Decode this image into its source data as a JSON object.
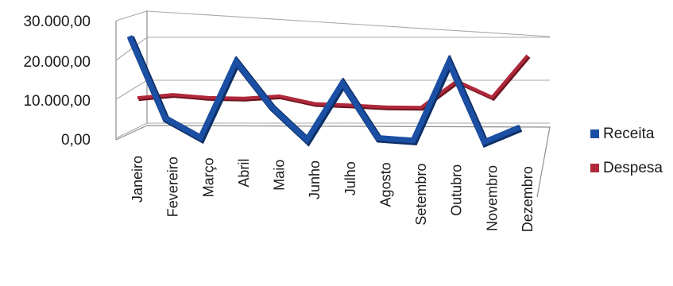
{
  "chart_data": {
    "type": "line",
    "categories": [
      "Janeiro",
      "Fevereiro",
      "Março",
      "Abril",
      "Maio",
      "Junho",
      "Julho",
      "Agosto",
      "Setembro",
      "Outubro",
      "Novembro",
      "Dezembro"
    ],
    "series": [
      {
        "name": "Receita",
        "color": "#1a4fa3",
        "values": [
          26000,
          5000,
          100,
          20000,
          8500,
          100,
          15000,
          1000,
          500,
          21000,
          500,
          4500
        ]
      },
      {
        "name": "Despesa",
        "color": "#b0283a",
        "values": [
          8000,
          9000,
          8400,
          8400,
          9200,
          7400,
          7200,
          6900,
          7000,
          14000,
          10000,
          21000
        ]
      }
    ],
    "y_ticks": [
      "0,00",
      "10.000,00",
      "20.000,00",
      "30.000,00"
    ],
    "ylim": [
      0,
      30000
    ],
    "legend": "right",
    "grid": true
  }
}
